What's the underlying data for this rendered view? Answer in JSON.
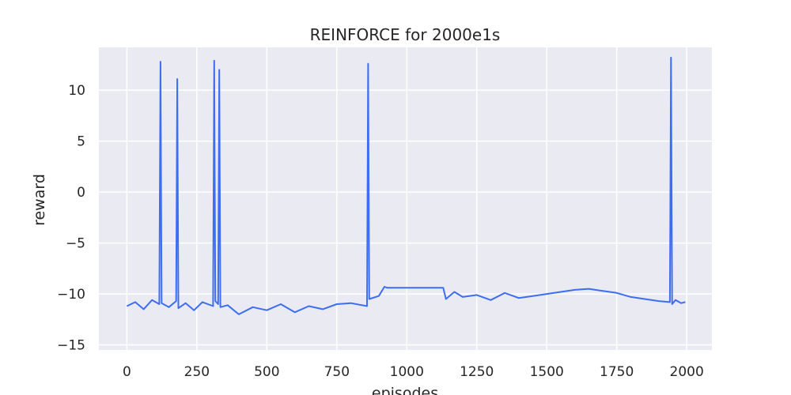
{
  "chart_data": {
    "type": "line",
    "title": "REINFORCE for 2000e1s",
    "xlabel": "episodes",
    "ylabel": "reward",
    "xlim": [
      -100,
      2090
    ],
    "ylim": [
      -15.5,
      14.2
    ],
    "xticks": [
      0,
      250,
      500,
      750,
      1000,
      1250,
      1500,
      1750,
      2000
    ],
    "yticks": [
      -15,
      -10,
      -5,
      0,
      5,
      10
    ],
    "ytick_labels": [
      "−15",
      "−10",
      "−5",
      "0",
      "5",
      "10"
    ],
    "grid": true,
    "background": "#EAEAF2",
    "grid_color": "#FFFFFF",
    "series": [
      {
        "color": "#3D6DF2",
        "x": [
          0,
          30,
          60,
          90,
          116,
          120,
          124,
          150,
          176,
          180,
          184,
          210,
          240,
          270,
          308,
          312,
          316,
          326,
          330,
          334,
          360,
          400,
          450,
          500,
          550,
          600,
          650,
          700,
          750,
          800,
          858,
          862,
          866,
          900,
          920,
          930,
          960,
          1000,
          1040,
          1080,
          1130,
          1140,
          1170,
          1200,
          1250,
          1300,
          1350,
          1400,
          1450,
          1500,
          1550,
          1600,
          1650,
          1700,
          1750,
          1800,
          1850,
          1900,
          1940,
          1944,
          1948,
          1960,
          1980,
          1995
        ],
        "y": [
          -11.2,
          -10.8,
          -11.5,
          -10.6,
          -11.0,
          12.8,
          -10.9,
          -11.3,
          -10.7,
          11.1,
          -11.4,
          -10.9,
          -11.6,
          -10.8,
          -11.2,
          12.9,
          -10.7,
          -11.0,
          12.0,
          -11.3,
          -11.1,
          -12.0,
          -11.3,
          -11.6,
          -11.0,
          -11.8,
          -11.2,
          -11.5,
          -11.0,
          -10.9,
          -11.2,
          12.6,
          -10.5,
          -10.2,
          -9.3,
          -9.4,
          -9.4,
          -9.4,
          -9.4,
          -9.4,
          -9.4,
          -10.5,
          -9.8,
          -10.3,
          -10.1,
          -10.6,
          -9.9,
          -10.4,
          -10.2,
          -10.0,
          -9.8,
          -9.6,
          -9.5,
          -9.7,
          -9.9,
          -10.3,
          -10.5,
          -10.7,
          -10.8,
          13.2,
          -11.0,
          -10.6,
          -10.9,
          -10.8
        ]
      }
    ]
  }
}
